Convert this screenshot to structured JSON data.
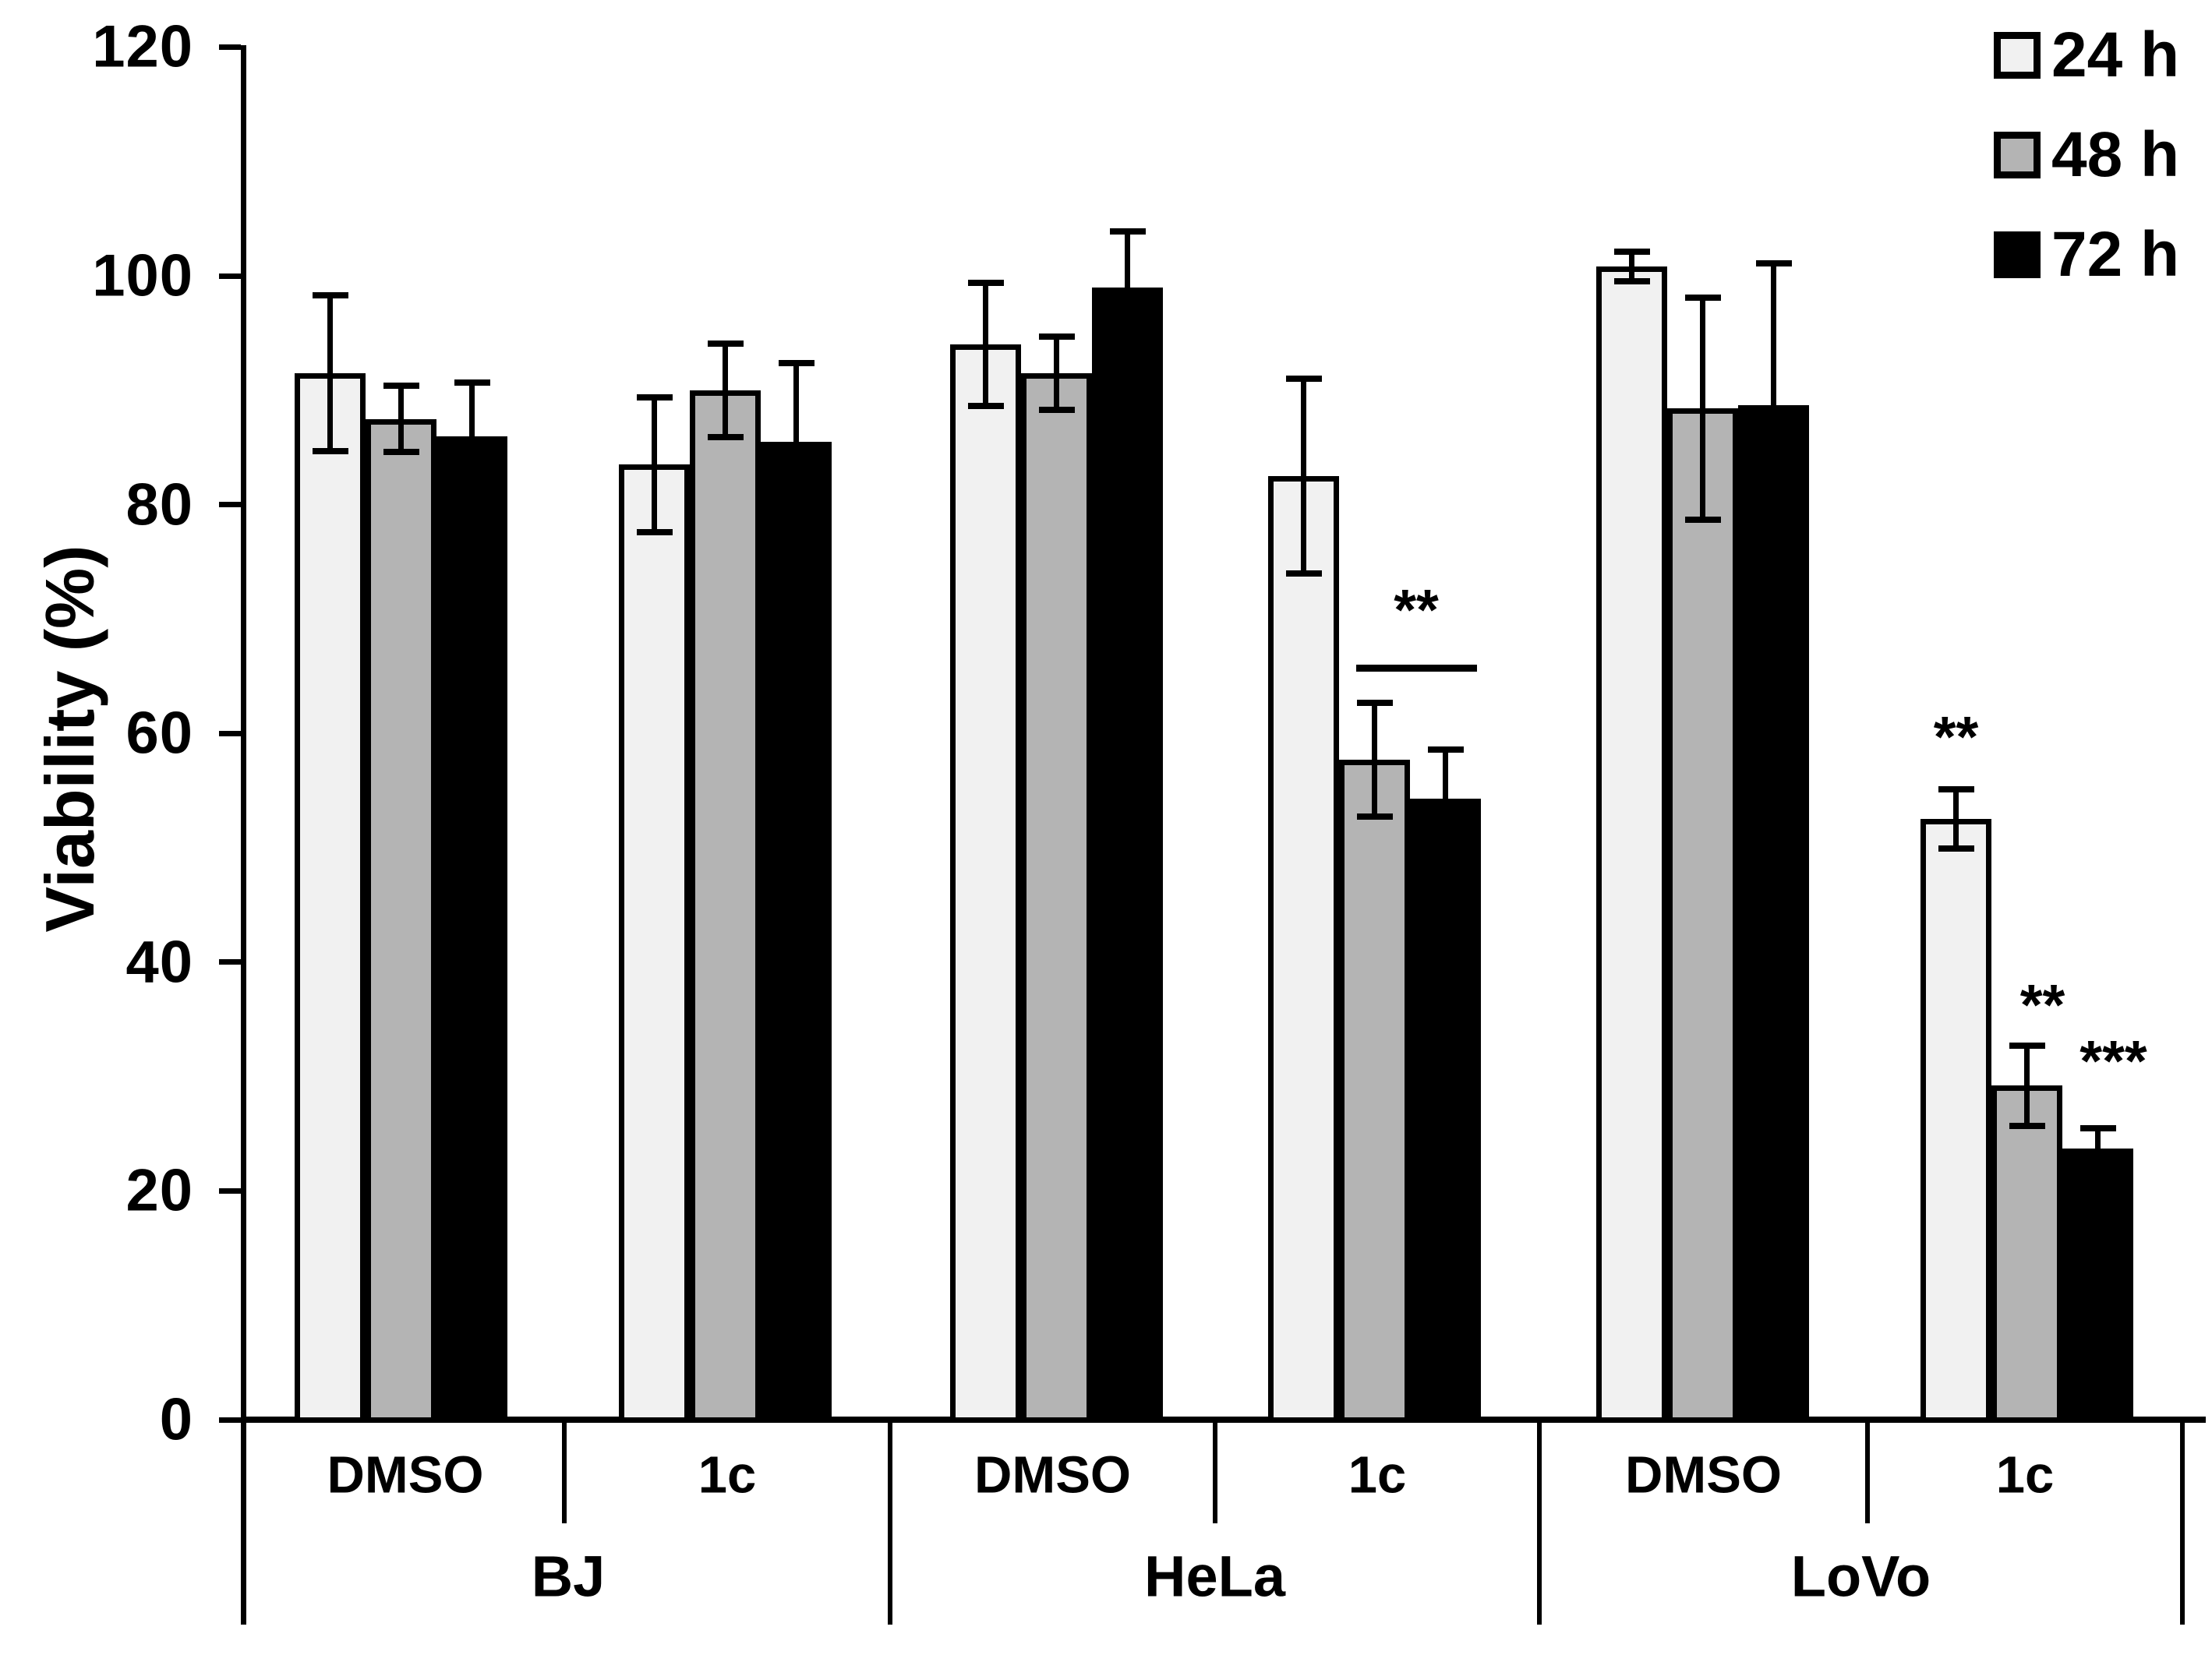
{
  "figure_type": "grouped-bar-chart-with-error-bars",
  "y_axis": {
    "label": "Viability (%)",
    "min": 0,
    "max": 120,
    "tick_step": 20,
    "ticks": [
      0,
      20,
      40,
      60,
      80,
      100,
      120
    ]
  },
  "x_axis": {
    "cell_lines": [
      "BJ",
      "HeLa",
      "LoVo"
    ],
    "conditions_per_cell_line": [
      "DMSO",
      "1c"
    ]
  },
  "legend": {
    "position": "top-right",
    "items": [
      {
        "label": "24 h",
        "fill": "#f1f1f1"
      },
      {
        "label": "48 h",
        "fill": "#b4b4b4"
      },
      {
        "label": "72 h",
        "fill": "#000000"
      }
    ]
  },
  "colors": {
    "bar_fills": [
      "#f1f1f1",
      "#b4b4b4",
      "#000000"
    ],
    "bar_border": "#000000",
    "axis": "#000000",
    "background": "#ffffff"
  },
  "chart_data": {
    "type": "bar",
    "title": "",
    "xlabel": "",
    "ylabel": "Viability (%)",
    "ylim": [
      0,
      120
    ],
    "grid": false,
    "legend_position": "top-right",
    "series_names": [
      "24 h",
      "48 h",
      "72 h"
    ],
    "groups": [
      {
        "cell_line": "BJ",
        "condition": "DMSO",
        "values": [
          91.5,
          87.5,
          86.0
        ],
        "errors": [
          6.8,
          2.9,
          4.7
        ]
      },
      {
        "cell_line": "BJ",
        "condition": "1c",
        "values": [
          83.5,
          90.0,
          85.5
        ],
        "errors": [
          5.9,
          4.1,
          6.9
        ]
      },
      {
        "cell_line": "HeLa",
        "condition": "DMSO",
        "values": [
          94.0,
          91.5,
          99.0
        ],
        "errors": [
          5.4,
          3.2,
          4.9
        ]
      },
      {
        "cell_line": "HeLa",
        "condition": "1c",
        "values": [
          82.5,
          57.7,
          54.3
        ],
        "errors": [
          8.5,
          5.0,
          4.3
        ]
      },
      {
        "cell_line": "LoVo",
        "condition": "DMSO",
        "values": [
          100.8,
          88.4,
          88.7
        ],
        "errors": [
          1.3,
          9.7,
          12.4
        ]
      },
      {
        "cell_line": "LoVo",
        "condition": "1c",
        "values": [
          52.5,
          29.2,
          23.7
        ],
        "errors": [
          2.6,
          3.5,
          1.8
        ]
      }
    ],
    "annotations": [
      {
        "type": "bracket",
        "group_index": 3,
        "from_bar": 1,
        "to_bar": 2,
        "label": "**",
        "line_value": 65.7,
        "label_value": 71.5
      },
      {
        "type": "star",
        "group_index": 5,
        "bar": 0,
        "label": "**",
        "value": 60.4
      },
      {
        "type": "star",
        "group_index": 5,
        "bar": 1,
        "label": "**",
        "value": 37.0
      },
      {
        "type": "star",
        "group_index": 5,
        "bar": 2,
        "label": "***",
        "value": 32.1
      }
    ]
  }
}
